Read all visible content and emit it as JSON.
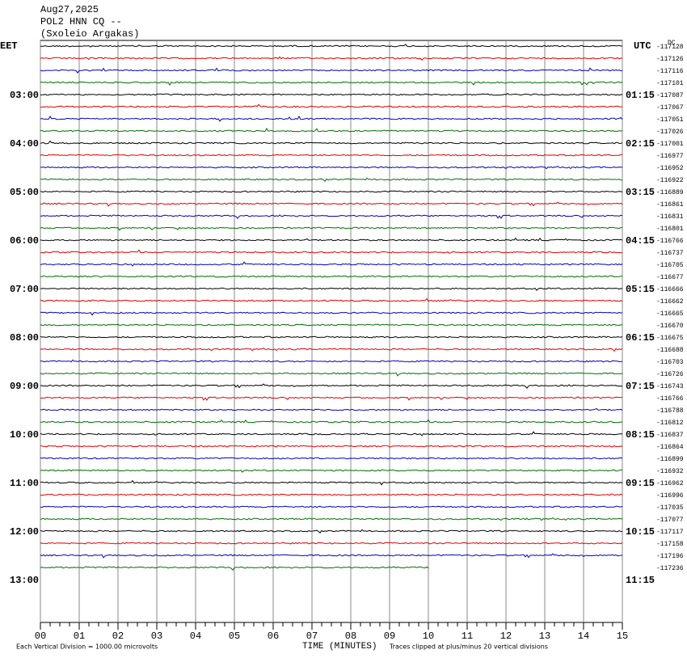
{
  "chart_data": {
    "type": "helicorder",
    "title": "Aug27,2025",
    "subtitle": "POL2 HNN CQ --",
    "station": "(Sxoleio Argakas)",
    "left_timezone": "EET",
    "right_timezone": "UTC",
    "offset_unit": "DC",
    "xlabel": "TIME (MINUTES)",
    "note_left": "Each Vertical Division = 1000.00 microvolts",
    "note_right": "Traces clipped at plus/minus 20 vertical divisions",
    "xlim": [
      0,
      15
    ],
    "xticks": [
      {
        "value": 0,
        "label": "00"
      },
      {
        "value": 1,
        "label": "01"
      },
      {
        "value": 2,
        "label": "02"
      },
      {
        "value": 3,
        "label": "03"
      },
      {
        "value": 4,
        "label": "04"
      },
      {
        "value": 5,
        "label": "05"
      },
      {
        "value": 6,
        "label": "06"
      },
      {
        "value": 7,
        "label": "07"
      },
      {
        "value": 8,
        "label": "08"
      },
      {
        "value": 9,
        "label": "09"
      },
      {
        "value": 10,
        "label": "10"
      },
      {
        "value": 11,
        "label": "11"
      },
      {
        "value": 12,
        "label": "12"
      },
      {
        "value": 13,
        "label": "13"
      },
      {
        "value": 14,
        "label": "14"
      },
      {
        "value": 15,
        "label": "15"
      }
    ],
    "colors": [
      "#000000",
      "#e00000",
      "#0000c0",
      "#007000"
    ],
    "offsets": [
      -117128,
      -117126,
      -117116,
      -117101,
      -117087,
      -117067,
      -117051,
      -117026,
      -117001,
      -116977,
      -116952,
      -116922,
      -116889,
      -116861,
      -116831,
      -116801,
      -116766,
      -116737,
      -116705,
      -116677,
      -116666,
      -116662,
      -116665,
      -116670,
      -116675,
      -116688,
      -116703,
      -116726,
      -116743,
      -116766,
      -116788,
      -116812,
      -116837,
      -116864,
      -116899,
      -116932,
      -116962,
      -116996,
      -117035,
      -117077,
      -117117,
      -117158,
      -117196,
      -117236
    ],
    "eet_labels": [
      "03:00",
      "04:00",
      "05:00",
      "06:00",
      "07:00",
      "08:00",
      "09:00",
      "10:00",
      "11:00",
      "12:00",
      "13:00"
    ],
    "utc_labels": [
      "01:15",
      "02:15",
      "03:15",
      "04:15",
      "05:15",
      "06:15",
      "07:15",
      "08:15",
      "09:15",
      "10:15",
      "11:15"
    ],
    "last_trace_end": 10
  }
}
